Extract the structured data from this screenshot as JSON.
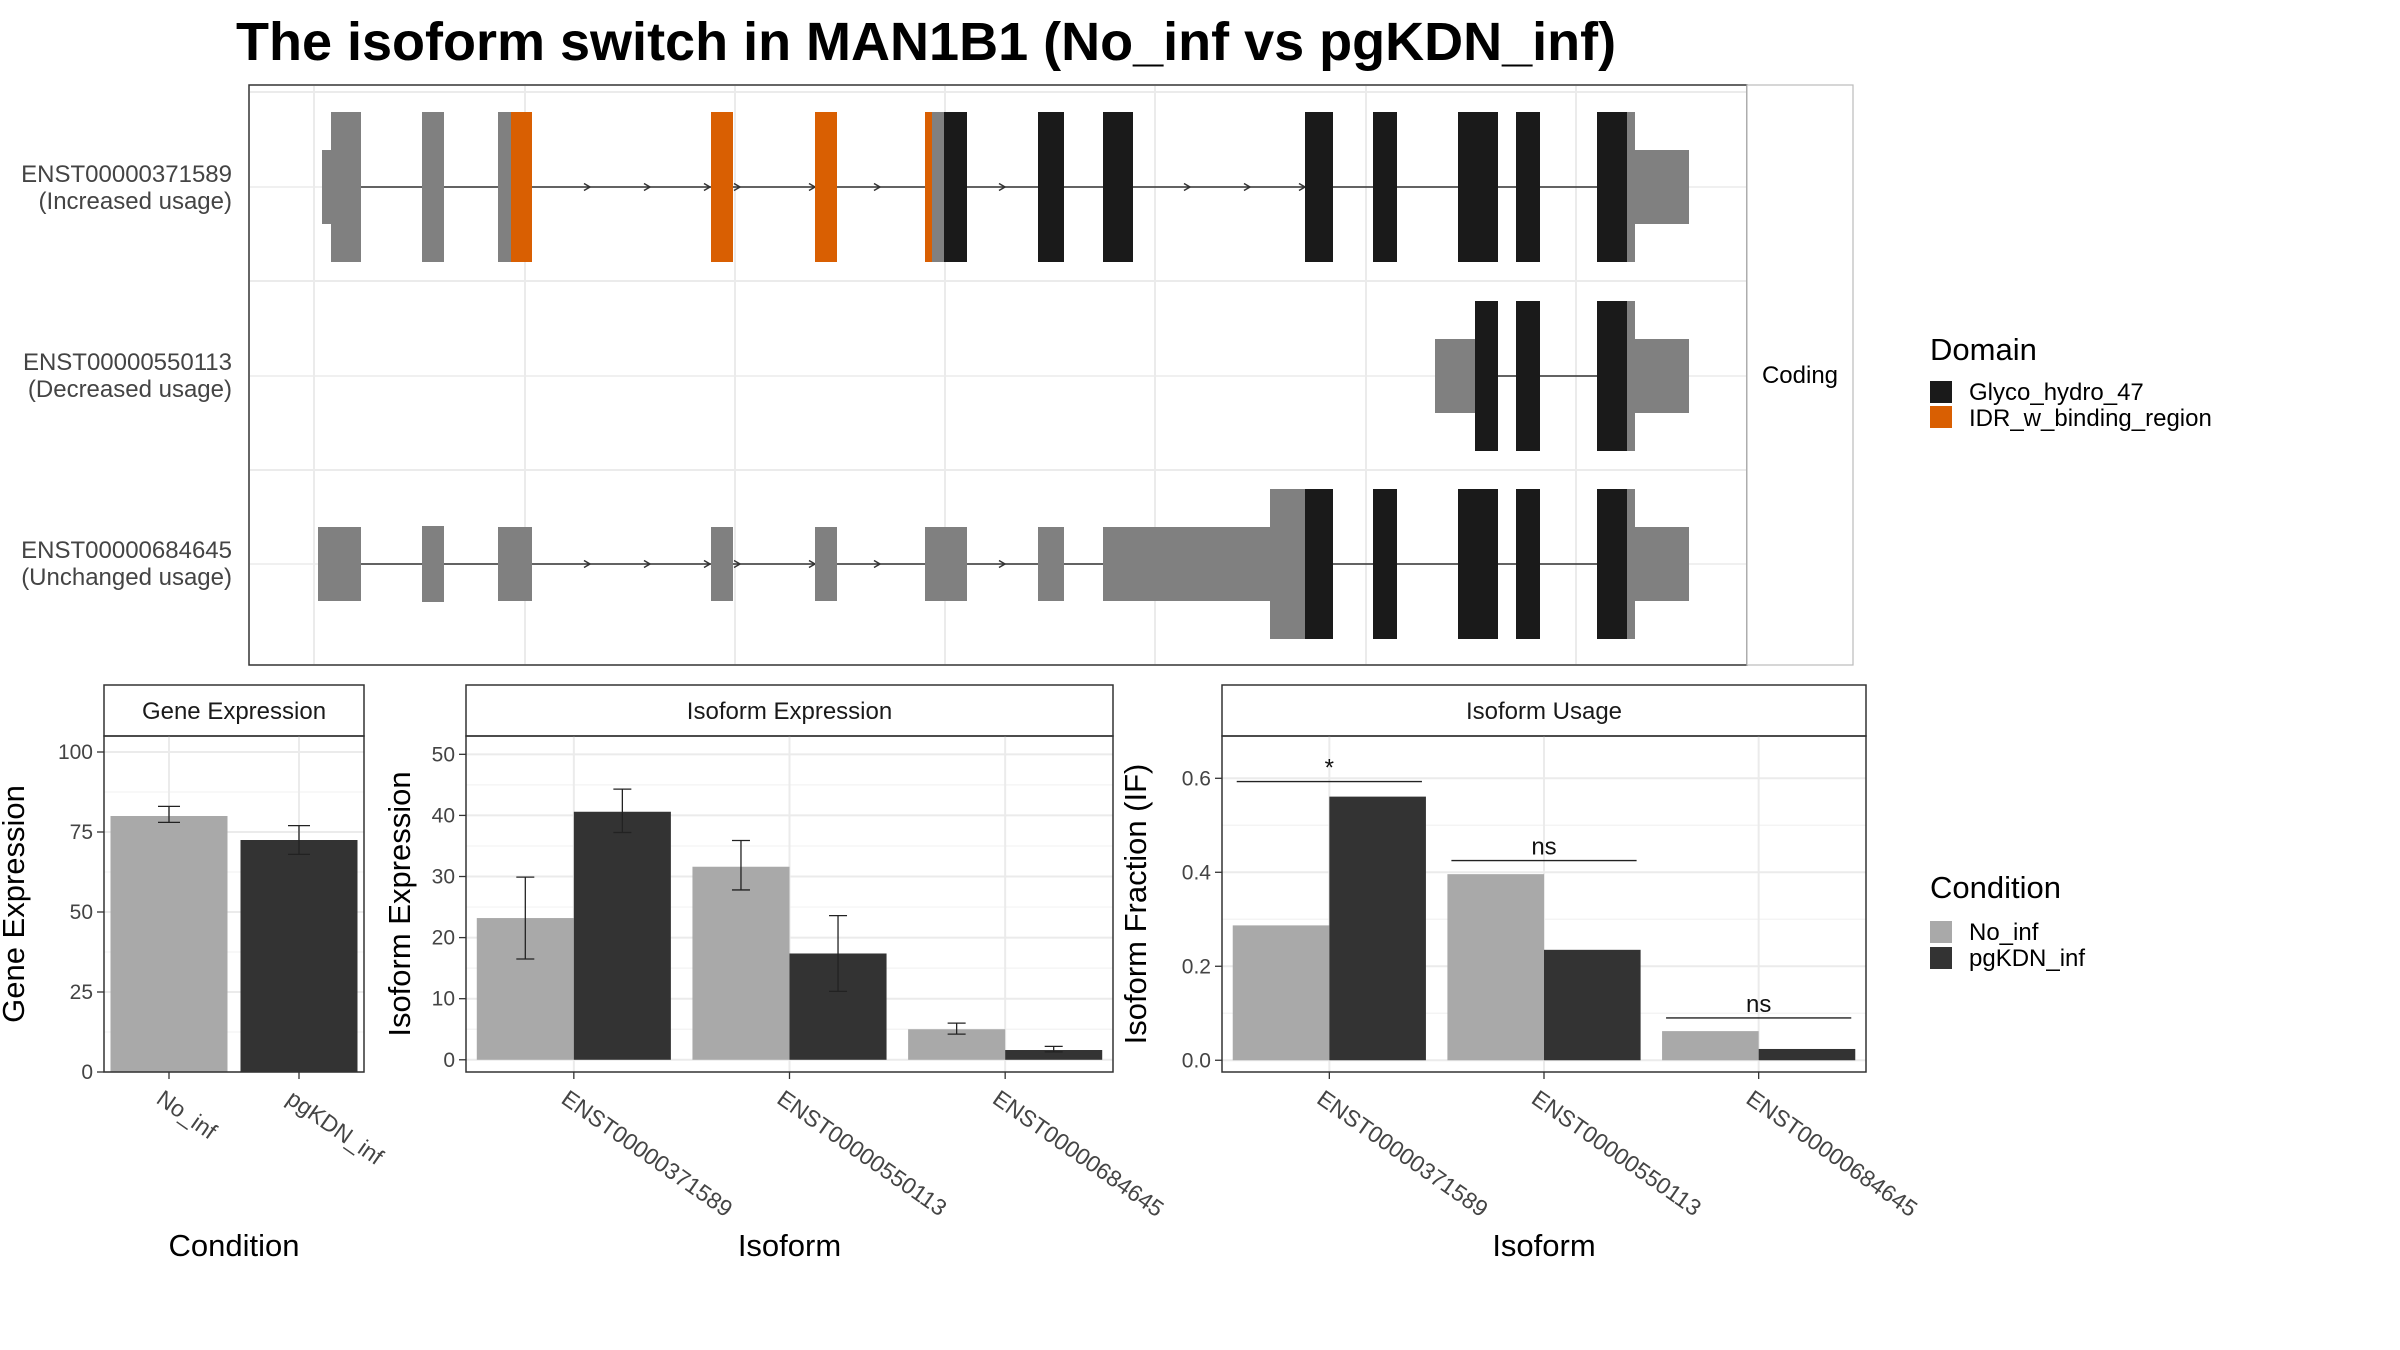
{
  "title": "The isoform switch in MAN1B1 (No_inf vs pgKDN_inf)",
  "colors": {
    "noncoding_exon": "#808080",
    "Glyco_hydro_47": "#1a1a1a",
    "IDR_w_binding_region": "#d95f02",
    "No_inf": "#a9a9a9",
    "pgKDN_inf": "#333333"
  },
  "structure": {
    "facet_label": "Coding",
    "transcripts": [
      {
        "id": "ENST00000371589",
        "usage": "(Increased usage)"
      },
      {
        "id": "ENST00000550113",
        "usage": "(Decreased usage)"
      },
      {
        "id": "ENST00000684645",
        "usage": "(Unchanged usage)"
      }
    ]
  },
  "legend_domain": {
    "title": "Domain",
    "items": [
      {
        "label": "Glyco_hydro_47",
        "color": "#1a1a1a"
      },
      {
        "label": "IDR_w_binding_region",
        "color": "#d95f02"
      }
    ]
  },
  "legend_condition": {
    "title": "Condition",
    "items": [
      {
        "label": "No_inf",
        "color": "#a9a9a9"
      },
      {
        "label": "pgKDN_inf",
        "color": "#333333"
      }
    ]
  },
  "chart_data": [
    {
      "type": "bar",
      "title": "Gene Expression",
      "xlabel": "Condition",
      "ylabel": "Gene Expression",
      "categories": [
        "No_inf",
        "pgKDN_inf"
      ],
      "values": [
        80,
        72.5
      ],
      "error_low": [
        78,
        68
      ],
      "error_high": [
        83,
        77
      ],
      "colors": [
        "#a9a9a9",
        "#333333"
      ],
      "ylim": [
        0,
        105
      ],
      "yticks": [
        0,
        25,
        50,
        75,
        100
      ],
      "grid": true
    },
    {
      "type": "bar",
      "title": "Isoform Expression",
      "xlabel": "Isoform",
      "ylabel": "Isoform Expression",
      "categories": [
        "ENST00000371589",
        "ENST00000550113",
        "ENST00000684645"
      ],
      "series": [
        {
          "name": "No_inf",
          "values": [
            23.2,
            31.6,
            5.0
          ],
          "error_low": [
            16.5,
            27.8,
            4.2
          ],
          "error_high": [
            29.9,
            35.9,
            6.0
          ]
        },
        {
          "name": "pgKDN_inf",
          "values": [
            40.6,
            17.4,
            1.6
          ],
          "error_low": [
            37.2,
            11.2,
            1.3
          ],
          "error_high": [
            44.3,
            23.6,
            2.2
          ]
        }
      ],
      "ylim": [
        -2,
        53
      ],
      "yticks": [
        0,
        10,
        20,
        30,
        40,
        50
      ],
      "grid": true
    },
    {
      "type": "bar",
      "title": "Isoform Usage",
      "xlabel": "Isoform",
      "ylabel": "Isoform Fraction (IF)",
      "categories": [
        "ENST00000371589",
        "ENST00000550113",
        "ENST00000684645"
      ],
      "series": [
        {
          "name": "No_inf",
          "values": [
            0.287,
            0.396,
            0.062
          ]
        },
        {
          "name": "pgKDN_inf",
          "values": [
            0.561,
            0.235,
            0.024
          ]
        }
      ],
      "annotations": [
        {
          "category": "ENST00000371589",
          "label": "*",
          "y": 0.593
        },
        {
          "category": "ENST00000550113",
          "label": "ns",
          "y": 0.425
        },
        {
          "category": "ENST00000684645",
          "label": "ns",
          "y": 0.09
        }
      ],
      "ylim": [
        -0.025,
        0.69
      ],
      "yticks": [
        0.0,
        0.2,
        0.4,
        0.6
      ],
      "grid": true
    }
  ]
}
